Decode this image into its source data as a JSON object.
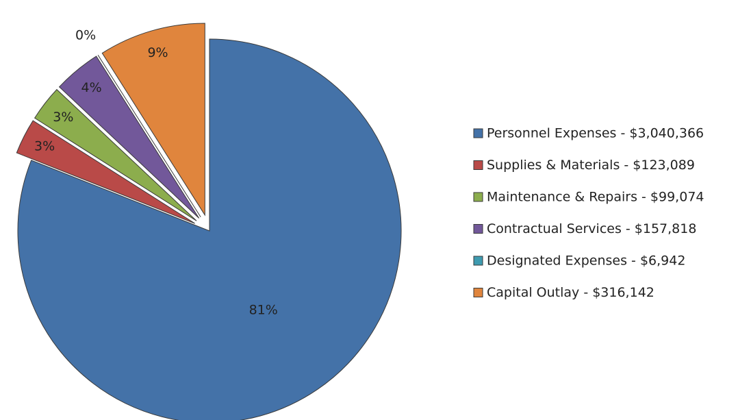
{
  "chart_data": {
    "type": "pie",
    "categories": [
      "Personnel Expenses - $3,040,366",
      "Supplies & Materials - $123,089",
      "Maintenance & Repairs - $99,074",
      "Contractual Services - $157,818",
      "Designated Expenses - $6,942",
      "Capital Outlay - $316,142"
    ],
    "values": [
      81,
      3,
      3,
      4,
      0,
      9
    ],
    "colors": [
      "#4472a8",
      "#b94a48",
      "#8cad4d",
      "#72589a",
      "#3e9bb0",
      "#e0853d"
    ],
    "legend": "right"
  }
}
